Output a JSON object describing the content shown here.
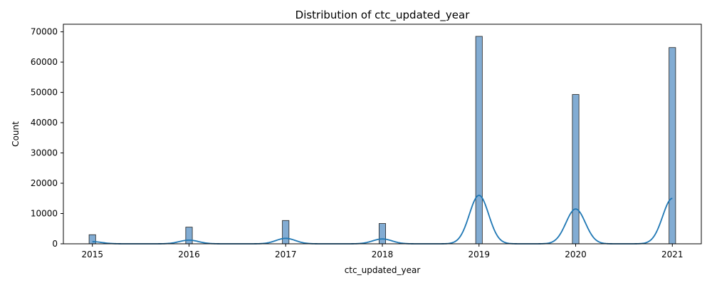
{
  "chart_data": {
    "type": "bar",
    "subtype": "histogram-with-kde",
    "title": "Distribution of ctc_updated_year",
    "xlabel": "ctc_updated_year",
    "ylabel": "Count",
    "xlim": [
      2014.7,
      2021.3
    ],
    "ylim": [
      0,
      72500
    ],
    "x_ticks": [
      2015,
      2016,
      2017,
      2018,
      2019,
      2020,
      2021
    ],
    "y_ticks": [
      0,
      10000,
      20000,
      30000,
      40000,
      50000,
      60000,
      70000
    ],
    "x_tick_labels": [
      "2015",
      "2016",
      "2017",
      "2018",
      "2019",
      "2020",
      "2021"
    ],
    "y_tick_labels": [
      "0",
      "10000",
      "20000",
      "30000",
      "40000",
      "50000",
      "60000",
      "70000"
    ],
    "categories": [
      "2015",
      "2016",
      "2017",
      "2018",
      "2019",
      "2020",
      "2021"
    ],
    "values": [
      3000,
      5500,
      7700,
      6700,
      68500,
      49300,
      64800
    ],
    "kde_peaks": [
      700,
      1200,
      1800,
      1600,
      16000,
      11500,
      15000
    ],
    "grid": false,
    "colors": {
      "bar_fill": "#82acd3",
      "bar_edge": "#1f1f1f",
      "kde_line": "#1f77b4",
      "axes": "#000000"
    }
  }
}
